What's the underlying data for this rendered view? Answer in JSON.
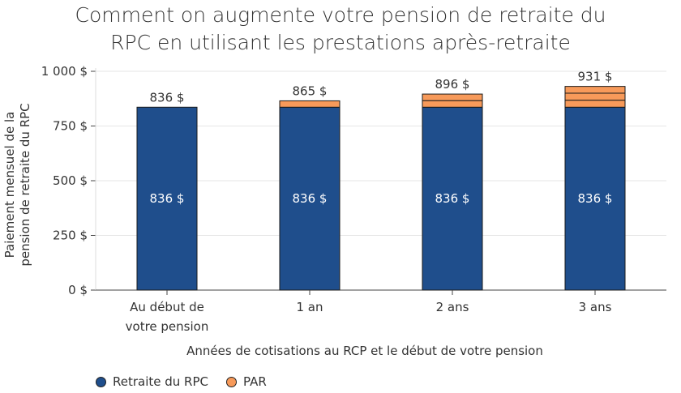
{
  "chart_data": {
    "type": "bar",
    "stacked": true,
    "title": "Comment on augmente votre pension de retraite du RPC en utilisant les prestations après-retraite",
    "title_lines": [
      "Comment on augmente votre pension de retraite du",
      "RPC en utilisant les prestations après-retraite"
    ],
    "ylabel": "Paiement mensuel de la pension de retraite du RPC",
    "ylabel_lines": [
      "Paiement mensuel de la",
      "pension de retraite du RPC"
    ],
    "xlabel": "Années de cotisations au RCP et le début de votre pension",
    "ylim": [
      0,
      1000
    ],
    "yticks": [
      {
        "value": 0,
        "label": "0 $"
      },
      {
        "value": 250,
        "label": "250 $"
      },
      {
        "value": 500,
        "label": "500 $"
      },
      {
        "value": 750,
        "label": "750 $"
      },
      {
        "value": 1000,
        "label": "1 000 $"
      }
    ],
    "grid": true,
    "legend_position": "bottom-left",
    "categories": [
      {
        "lines": [
          "Au début de",
          "votre pension"
        ]
      },
      {
        "lines": [
          "1 an"
        ]
      },
      {
        "lines": [
          "2 ans"
        ]
      },
      {
        "lines": [
          "3 ans"
        ]
      }
    ],
    "series": [
      {
        "name": "Retraite du RPC",
        "color": "#1f4e8c",
        "values": [
          836,
          836,
          836,
          836
        ],
        "labels": [
          "836 $",
          "836 $",
          "836 $",
          "836 $"
        ]
      },
      {
        "name": "PAR",
        "color": "#f79a5a",
        "segments": [
          [],
          [
            29
          ],
          [
            30,
            30
          ],
          [
            32,
            32,
            31
          ]
        ]
      }
    ],
    "totals": [
      836,
      865,
      896,
      931
    ],
    "total_labels": [
      "836 $",
      "865 $",
      "896 $",
      "931 $"
    ]
  }
}
